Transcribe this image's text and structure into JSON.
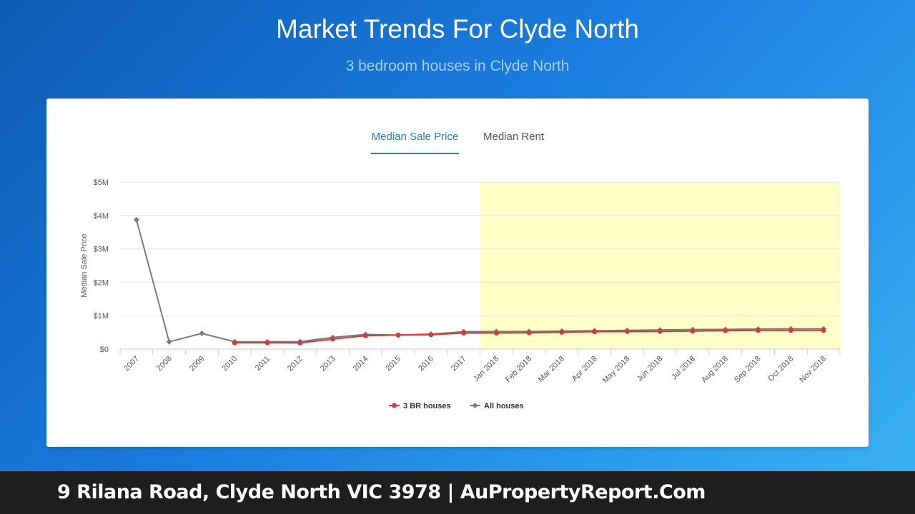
{
  "header": {
    "title": "Market Trends For Clyde North",
    "subtitle": "3 bedroom houses in Clyde North"
  },
  "tabs": {
    "sale": "Median Sale Price",
    "rent": "Median Rent"
  },
  "footer": {
    "text": "9 Rilana Road, Clyde North VIC 3978 | AuPropertyReport.Com"
  },
  "colors": {
    "series_3br": "#d33b3b",
    "series_all": "#7b7b7b",
    "highlight_band": "#ffffc8"
  },
  "chart_data": {
    "type": "line",
    "ylabel": "Median Sale Price",
    "xlabel": "",
    "ylim": [
      0,
      5000000
    ],
    "yticks": [
      {
        "value": 0,
        "label": "$0"
      },
      {
        "value": 1000000,
        "label": "$1M"
      },
      {
        "value": 2000000,
        "label": "$2M"
      },
      {
        "value": 3000000,
        "label": "$3M"
      },
      {
        "value": 4000000,
        "label": "$4M"
      },
      {
        "value": 5000000,
        "label": "$5M"
      }
    ],
    "grid": true,
    "legend_position": "bottom-center",
    "highlight_range": [
      "Jan 2018",
      "Nov 2018"
    ],
    "categories": [
      "2007",
      "2008",
      "2009",
      "2010",
      "2011",
      "2012",
      "2013",
      "2014",
      "2015",
      "2016",
      "2017",
      "Jan 2018",
      "Feb 2018",
      "Mar 2018",
      "Apr 2018",
      "May 2018",
      "Jun 2018",
      "Jul 2018",
      "Aug 2018",
      "Sep 2018",
      "Oct 2018",
      "Nov 2018"
    ],
    "series": [
      {
        "name": "3 BR houses",
        "values": [
          null,
          null,
          null,
          190000,
          190000,
          185000,
          300000,
          400000,
          420000,
          430000,
          480000,
          480000,
          490000,
          505000,
          520000,
          525000,
          530000,
          540000,
          550000,
          560000,
          560000,
          560000
        ]
      },
      {
        "name": "All houses",
        "values": [
          3870000,
          220000,
          470000,
          220000,
          220000,
          225000,
          350000,
          440000,
          420000,
          450000,
          520000,
          525000,
          530000,
          540000,
          550000,
          560000,
          575000,
          585000,
          590000,
          600000,
          605000,
          605000
        ]
      }
    ]
  }
}
